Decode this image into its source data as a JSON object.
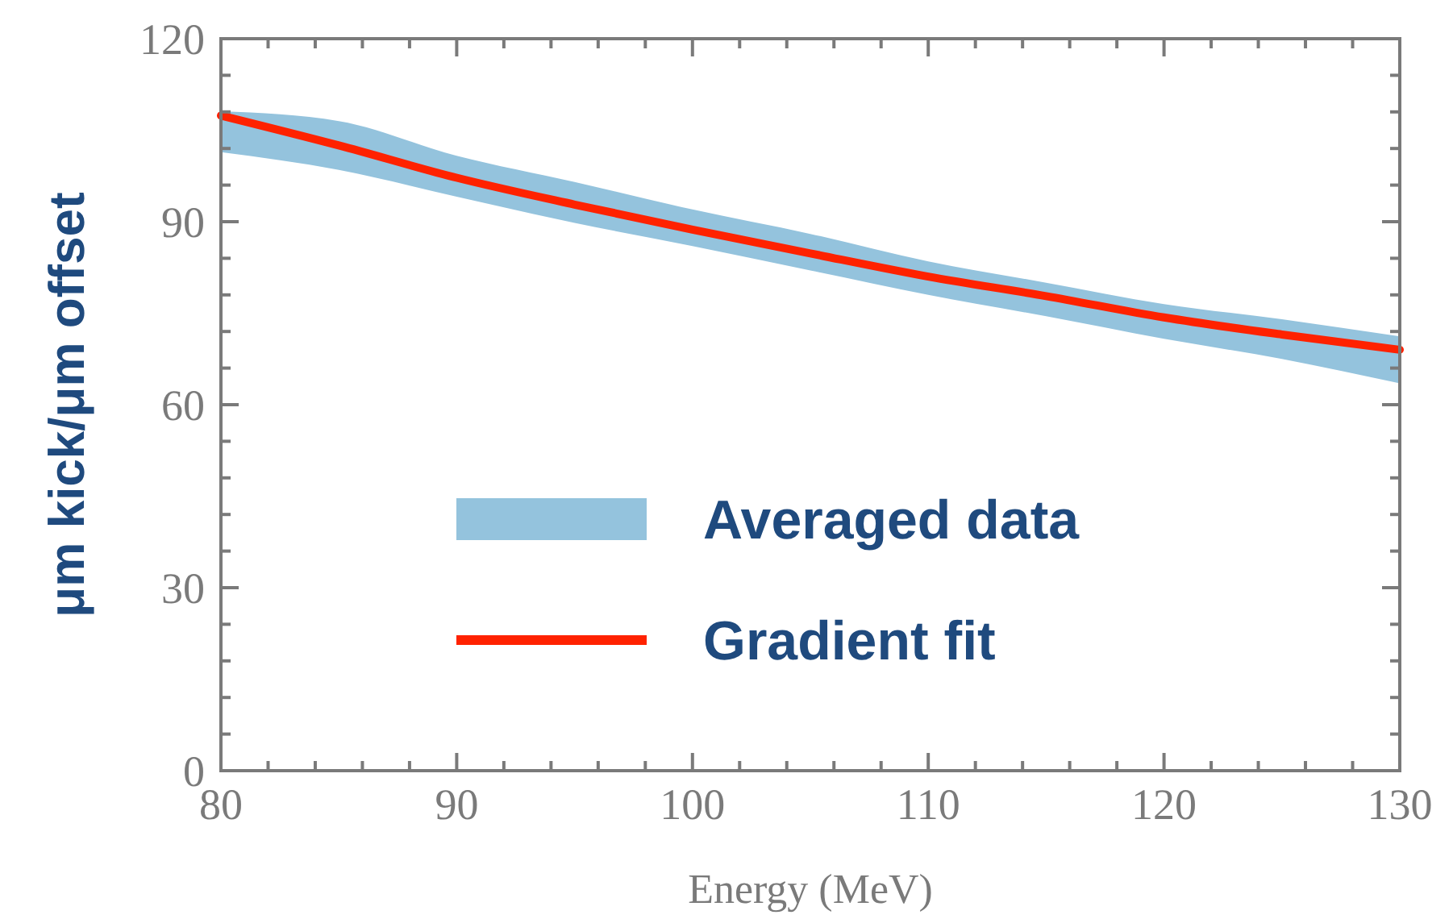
{
  "chart_data": {
    "type": "line",
    "xlabel": "Energy (MeV)",
    "ylabel": "μm kick/μm offset",
    "x": [
      80,
      85,
      90,
      95,
      100,
      105,
      110,
      115,
      120,
      125,
      130
    ],
    "series": [
      {
        "name": "Averaged data",
        "color": "#94c3dd",
        "values": [
          null,
          null,
          null,
          null,
          null,
          null,
          null,
          null,
          null,
          null,
          null
        ],
        "upper": [
          108.1,
          106.5,
          100.8,
          96.5,
          92,
          88,
          83.5,
          80,
          76.5,
          74,
          71.2
        ],
        "lower": [
          101.4,
          98.5,
          94.1,
          89.8,
          86,
          82,
          78,
          74.5,
          70.8,
          67.5,
          63.5
        ]
      },
      {
        "name": "Gradient fit",
        "type": "line",
        "color": "#ff2200",
        "values": [
          107.4,
          102.5,
          97.2,
          92.8,
          88.7,
          84.8,
          81,
          77.8,
          74.3,
          71.5,
          69
        ]
      }
    ],
    "xlim": [
      80,
      130
    ],
    "ylim": [
      0,
      120
    ],
    "xticks": [
      80,
      {
        "value": 82,
        "label": null
      },
      {
        "value": 84,
        "label": null
      },
      {
        "value": 86,
        "label": null
      },
      {
        "value": 88,
        "label": null
      },
      90,
      {
        "value": 92,
        "label": null
      },
      {
        "value": 94,
        "label": null
      },
      {
        "value": 96,
        "label": null
      },
      {
        "value": 98,
        "label": null
      },
      100,
      {
        "value": 102,
        "label": null
      },
      {
        "value": 104,
        "label": null
      },
      {
        "value": 106,
        "label": null
      },
      {
        "value": 108,
        "label": null
      },
      110,
      {
        "value": 112,
        "label": null
      },
      {
        "value": 114,
        "label": null
      },
      {
        "value": 116,
        "label": null
      },
      {
        "value": 118,
        "label": null
      },
      120,
      {
        "value": 122,
        "label": null
      },
      {
        "value": 124,
        "label": null
      },
      {
        "value": 126,
        "label": null
      },
      {
        "value": 128,
        "label": null
      },
      130
    ],
    "yticks": [
      0,
      {
        "value": 6,
        "label": null
      },
      {
        "value": 12,
        "label": null
      },
      {
        "value": 18,
        "label": null
      },
      {
        "value": 24,
        "label": null
      },
      30,
      {
        "value": 36,
        "label": null
      },
      {
        "value": 42,
        "label": null
      },
      {
        "value": 48,
        "label": null
      },
      {
        "value": 54,
        "label": null
      },
      60,
      {
        "value": 66,
        "label": null
      },
      {
        "value": 72,
        "label": null
      },
      {
        "value": 78,
        "label": null
      },
      {
        "value": 84,
        "label": null
      },
      90,
      {
        "value": 96,
        "label": null
      },
      {
        "value": 102,
        "label": null
      },
      {
        "value": 108,
        "label": null
      },
      {
        "value": 114,
        "label": null
      },
      120
    ],
    "legend": "bottom",
    "grid": false,
    "line_style": "solid",
    "marker": "none"
  }
}
